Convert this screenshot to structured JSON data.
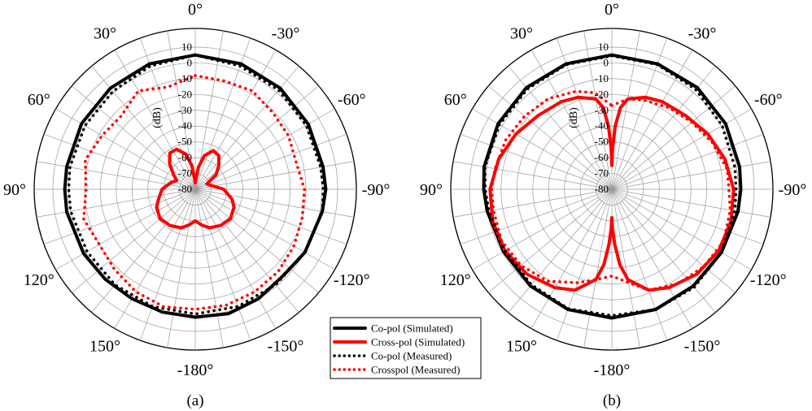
{
  "chart_data": [
    {
      "type": "polar",
      "caption": "(a)",
      "unit_label": "(dB)",
      "radial_range": [
        -80,
        10
      ],
      "radial_ticks": [
        10,
        0,
        -10,
        -20,
        -30,
        -40,
        -50,
        -60,
        -70,
        -80
      ],
      "angle_ticks": [
        "0°",
        "-30°",
        "-60°",
        "-90°",
        "-120°",
        "-150°",
        "-180°",
        "150°",
        "120°",
        "90°",
        "60°",
        "30°"
      ],
      "grid": true,
      "series": [
        {
          "name": "Co-pol (Simulated)",
          "color": "#000000",
          "style": "solid",
          "theta": [
            0,
            20,
            40,
            60,
            80,
            90,
            100,
            120,
            135,
            150,
            165,
            180,
            195,
            210,
            225,
            240,
            260,
            270,
            280,
            300,
            320,
            340,
            360
          ],
          "r": [
            5,
            4.5,
            3.5,
            2.5,
            2,
            2.5,
            1.5,
            0,
            -2,
            0,
            1.5,
            1,
            0.5,
            0,
            0.5,
            1.5,
            2.5,
            2.5,
            2.5,
            3,
            3.5,
            4.5,
            5
          ]
        },
        {
          "name": "Cross-pol (Simulated)",
          "color": "#ff0000",
          "style": "solid",
          "theta": [
            0,
            8,
            15,
            25,
            35,
            45,
            55,
            65,
            75,
            90,
            105,
            115,
            130,
            145,
            160,
            170,
            180,
            190,
            200,
            215,
            230,
            245,
            255,
            270,
            285,
            295,
            305,
            315,
            325,
            335,
            345,
            352,
            360
          ],
          "r": [
            -76,
            -66,
            -58,
            -53,
            -54,
            -59,
            -64,
            -72,
            -70,
            -62,
            -56,
            -53,
            -51,
            -52,
            -54,
            -57,
            -60,
            -57,
            -54,
            -52,
            -51,
            -53,
            -56,
            -59,
            -64,
            -67,
            -63,
            -57,
            -52,
            -52,
            -57,
            -65,
            -76
          ]
        },
        {
          "name": "Co-pol (Measured)",
          "color": "#000000",
          "style": "dotted",
          "theta": [
            0,
            20,
            40,
            60,
            80,
            90,
            100,
            120,
            140,
            160,
            180,
            200,
            220,
            240,
            260,
            270,
            280,
            300,
            320,
            340,
            360
          ],
          "r": [
            5,
            3,
            2,
            1,
            0.5,
            1,
            1.5,
            0,
            -1,
            -1,
            -1,
            -1,
            -1,
            -1,
            0,
            0,
            0.5,
            0.5,
            1,
            3,
            5
          ]
        },
        {
          "name": "Crosspol (Measured)",
          "color": "#ff0000",
          "style": "dotted",
          "theta": [
            0,
            15,
            30,
            45,
            60,
            75,
            90,
            105,
            120,
            135,
            150,
            165,
            180,
            195,
            210,
            225,
            240,
            255,
            270,
            285,
            300,
            315,
            330,
            345,
            360
          ],
          "r": [
            -8,
            -9,
            -8,
            -11,
            -12,
            -14,
            -11,
            -10,
            -8,
            -6,
            -5,
            -4,
            -4,
            -3,
            -5,
            -8,
            -10,
            -7,
            -11,
            -8,
            -12,
            -14,
            -8,
            -13,
            -8
          ]
        }
      ]
    },
    {
      "type": "polar",
      "caption": "(b)",
      "unit_label": "(dB)",
      "radial_range": [
        -80,
        10
      ],
      "radial_ticks": [
        10,
        0,
        -10,
        -20,
        -30,
        -40,
        -50,
        -60,
        -70,
        -80
      ],
      "angle_ticks": [
        "0°",
        "-30°",
        "-60°",
        "-90°",
        "-120°",
        "-150°",
        "-180°",
        "150°",
        "120°",
        "90°",
        "60°",
        "30°"
      ],
      "grid": true,
      "series": [
        {
          "name": "Co-pol (Simulated)",
          "color": "#000000",
          "style": "solid",
          "theta": [
            0,
            20,
            40,
            60,
            80,
            90,
            100,
            120,
            140,
            160,
            180,
            200,
            220,
            240,
            260,
            270,
            280,
            300,
            320,
            340,
            360
          ],
          "r": [
            5,
            4.5,
            4,
            3,
            2,
            1.5,
            1,
            0,
            0,
            1,
            1.5,
            1,
            0,
            -1,
            0,
            1,
            2,
            3,
            4,
            4.5,
            5
          ]
        },
        {
          "name": "Cross-pol (Simulated)",
          "color": "#ff0000",
          "style": "solid",
          "theta": [
            0,
            1,
            3,
            6,
            10,
            20,
            30,
            45,
            60,
            75,
            90,
            105,
            120,
            135,
            150,
            160,
            170,
            174,
            177,
            179,
            180,
            181,
            183,
            186,
            190,
            200,
            210,
            225,
            240,
            255,
            270,
            285,
            300,
            315,
            330,
            340,
            350,
            354,
            357,
            359,
            360
          ],
          "r": [
            -65,
            -55,
            -40,
            -28,
            -22,
            -18,
            -16,
            -14,
            -10,
            -6,
            -3,
            -2,
            -2,
            -4,
            -8,
            -12,
            -22,
            -32,
            -45,
            -55,
            -62,
            -55,
            -45,
            -32,
            -22,
            -12,
            -8,
            -4,
            -2,
            -2,
            -3,
            -6,
            -10,
            -14,
            -16,
            -18,
            -22,
            -28,
            -40,
            -55,
            -65
          ]
        },
        {
          "name": "Co-pol (Measured)",
          "color": "#000000",
          "style": "dotted",
          "theta": [
            0,
            20,
            40,
            60,
            80,
            90,
            100,
            120,
            140,
            160,
            180,
            200,
            220,
            240,
            260,
            270,
            280,
            300,
            320,
            340,
            360
          ],
          "r": [
            4.5,
            4,
            2.5,
            0.5,
            -1,
            -1.5,
            -1,
            0,
            1,
            1,
            0,
            0.5,
            -1,
            -2,
            -1,
            0,
            1.5,
            2,
            3,
            4,
            4.5
          ]
        },
        {
          "name": "Crosspol (Measured)",
          "color": "#ff0000",
          "style": "dotted",
          "theta": [
            0,
            10,
            20,
            35,
            50,
            65,
            80,
            90,
            100,
            115,
            130,
            145,
            160,
            170,
            180,
            190,
            200,
            215,
            230,
            245,
            260,
            270,
            280,
            295,
            310,
            325,
            340,
            350,
            360
          ],
          "r": [
            -27,
            -22,
            -20,
            -17,
            -14,
            -10,
            -6,
            -6,
            -4,
            -2,
            -4,
            -7,
            -12,
            -20,
            -25,
            -22,
            -17,
            -9,
            -5,
            -3,
            -4,
            -4,
            -5,
            -6,
            -8,
            -10,
            -14,
            -18,
            -27
          ]
        }
      ]
    }
  ],
  "legend": {
    "position": "bottom-center",
    "items": [
      {
        "label": "Co-pol (Simulated)",
        "color": "#000000",
        "style": "solid"
      },
      {
        "label": "Cross-pol (Simulated)",
        "color": "#ff0000",
        "style": "solid"
      },
      {
        "label": "Co-pol (Measured)",
        "color": "#000000",
        "style": "dotted"
      },
      {
        "label": "Crosspol (Measured)",
        "color": "#ff0000",
        "style": "dotted"
      }
    ]
  }
}
